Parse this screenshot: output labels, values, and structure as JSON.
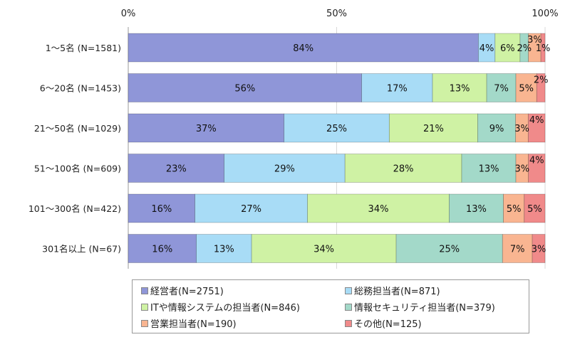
{
  "chart_data": {
    "type": "bar",
    "orientation": "horizontal",
    "stacked": true,
    "xlim": [
      0,
      100
    ],
    "x_ticks": [
      "0%",
      "50%",
      "100%"
    ],
    "categories": [
      "1～5名 (N=1581)",
      "6～20名 (N=1453)",
      "21～50名 (N=1029)",
      "51～100名 (N=609)",
      "101～300名 (N=422)",
      "301名以上 (N=67)"
    ],
    "series": [
      {
        "name": "経営者(N=2751)",
        "color": "#8f96d8",
        "values": [
          84,
          56,
          37,
          23,
          16,
          16
        ]
      },
      {
        "name": "総務担当者(N=871)",
        "color": "#a8dcf6",
        "values": [
          4,
          17,
          25,
          29,
          27,
          13
        ]
      },
      {
        "name": "ITや情報システムの担当者(N=846)",
        "color": "#cff2a4",
        "values": [
          6,
          13,
          21,
          28,
          34,
          34
        ]
      },
      {
        "name": "情報セキュリティ担当者(N=379)",
        "color": "#a3d9c9",
        "values": [
          2,
          7,
          9,
          13,
          13,
          25
        ]
      },
      {
        "name": "営業担当者(N=190)",
        "color": "#f9b591",
        "values": [
          3,
          5,
          3,
          3,
          5,
          7
        ]
      },
      {
        "name": "その他(N=125)",
        "color": "#f08a8a",
        "values": [
          1,
          2,
          4,
          4,
          5,
          3
        ]
      }
    ],
    "legend_position": "bottom",
    "grid": true
  }
}
